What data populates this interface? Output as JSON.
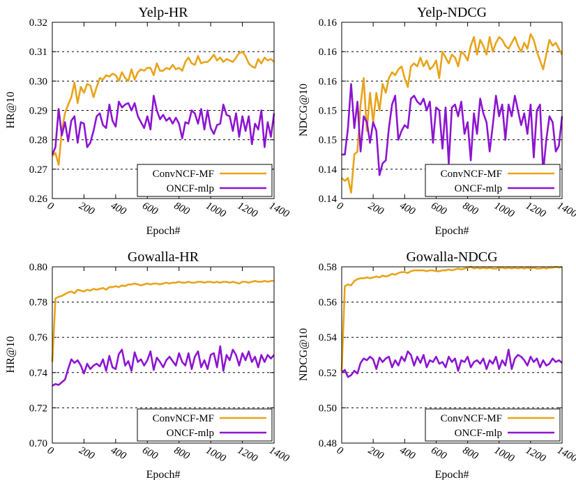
{
  "colors": {
    "convncf_mf": "#e8a319",
    "oncf_mlp": "#8c14d2"
  },
  "chart_data": [
    {
      "id": "yelp-hr",
      "type": "line",
      "title": "Yelp-HR",
      "xlabel": "Epoch#",
      "ylabel": "HR@10",
      "xlim": [
        0,
        1400
      ],
      "ylim": [
        0.26,
        0.32
      ],
      "xticks": [
        "0",
        "200",
        "400",
        "600",
        "800",
        "1000",
        "1200",
        "1400"
      ],
      "yticks": [
        "0.26",
        "0.27",
        "0.28",
        "0.29",
        "0.30",
        "0.31",
        "0.32"
      ],
      "ytick_values": [
        0.26,
        0.27,
        0.28,
        0.29,
        0.3,
        0.31,
        0.32
      ],
      "grid": "horizontal-dashed",
      "legend_position": "bottom-right",
      "x": [
        0,
        20,
        40,
        60,
        80,
        100,
        120,
        140,
        160,
        180,
        200,
        220,
        240,
        260,
        280,
        300,
        320,
        340,
        360,
        380,
        400,
        420,
        440,
        460,
        480,
        500,
        520,
        540,
        560,
        580,
        600,
        620,
        640,
        660,
        680,
        700,
        720,
        740,
        760,
        780,
        800,
        820,
        840,
        860,
        880,
        900,
        920,
        940,
        960,
        980,
        1000,
        1020,
        1040,
        1060,
        1080,
        1100,
        1120,
        1140,
        1160,
        1180,
        1200,
        1220,
        1240,
        1260,
        1280,
        1300,
        1320,
        1340,
        1360,
        1380,
        1400
      ],
      "series": [
        {
          "name": "ConvNCF-MF",
          "color_key": "convncf_mf",
          "values": [
            0.2745,
            0.2755,
            0.2715,
            0.283,
            0.289,
            0.292,
            0.2945,
            0.2995,
            0.2925,
            0.298,
            0.296,
            0.299,
            0.2985,
            0.2945,
            0.298,
            0.301,
            0.3005,
            0.302,
            0.3015,
            0.3025,
            0.302,
            0.3,
            0.303,
            0.301,
            0.3,
            0.304,
            0.3005,
            0.303,
            0.304,
            0.3035,
            0.3045,
            0.3045,
            0.302,
            0.306,
            0.3035,
            0.3035,
            0.3045,
            0.304,
            0.3055,
            0.304,
            0.3045,
            0.3035,
            0.3065,
            0.308,
            0.306,
            0.3055,
            0.3085,
            0.306,
            0.3065,
            0.3065,
            0.3075,
            0.309,
            0.307,
            0.308,
            0.3065,
            0.3075,
            0.307,
            0.3065,
            0.308,
            0.3095,
            0.31,
            0.3085,
            0.306,
            0.305,
            0.3045,
            0.3075,
            0.306,
            0.308,
            0.307,
            0.3075,
            0.3065
          ]
        },
        {
          "name": "ONCF-mlp",
          "color_key": "oncf_mlp",
          "values": [
            0.275,
            0.2775,
            0.2905,
            0.2815,
            0.286,
            0.2795,
            0.2865,
            0.288,
            0.279,
            0.286,
            0.2855,
            0.2775,
            0.279,
            0.283,
            0.288,
            0.289,
            0.285,
            0.284,
            0.292,
            0.2865,
            0.2845,
            0.293,
            0.291,
            0.292,
            0.2925,
            0.29,
            0.2925,
            0.288,
            0.286,
            0.284,
            0.288,
            0.2835,
            0.295,
            0.29,
            0.287,
            0.2885,
            0.2865,
            0.2875,
            0.2855,
            0.2875,
            0.2855,
            0.2805,
            0.286,
            0.2855,
            0.29,
            0.289,
            0.2855,
            0.2905,
            0.2835,
            0.29,
            0.284,
            0.282,
            0.285,
            0.2855,
            0.292,
            0.2885,
            0.288,
            0.283,
            0.289,
            0.281,
            0.288,
            0.283,
            0.288,
            0.2785,
            0.2855,
            0.2835,
            0.29,
            0.2775,
            0.286,
            0.281,
            0.289
          ]
        }
      ]
    },
    {
      "id": "yelp-ndcg",
      "type": "line",
      "title": "Yelp-NDCG",
      "xlabel": "Epoch#",
      "ylabel": "NDCG@10",
      "xlim": [
        0,
        1400
      ],
      "ylim": [
        0.135,
        0.165
      ],
      "xticks": [
        "0",
        "200",
        "400",
        "600",
        "800",
        "1000",
        "1200",
        "1400"
      ],
      "yticks": [
        "0.14",
        "0.14",
        "0.15",
        "0.15",
        "0.16",
        "0.16"
      ],
      "ytick_values": [
        0.135,
        0.14,
        0.145,
        0.15,
        0.155,
        0.16,
        0.165
      ],
      "ytick_labels_all": [
        "0.14",
        "0.14",
        "0.15",
        "0.15",
        "0.16",
        "0.16",
        "0.16"
      ],
      "grid": "horizontal-dashed",
      "legend_position": "bottom-right",
      "x": [
        0,
        20,
        40,
        60,
        80,
        100,
        120,
        140,
        160,
        180,
        200,
        220,
        240,
        260,
        280,
        300,
        320,
        340,
        360,
        380,
        400,
        420,
        440,
        460,
        480,
        500,
        520,
        540,
        560,
        580,
        600,
        620,
        640,
        660,
        680,
        700,
        720,
        740,
        760,
        780,
        800,
        820,
        840,
        860,
        880,
        900,
        920,
        940,
        960,
        980,
        1000,
        1020,
        1040,
        1060,
        1080,
        1100,
        1120,
        1140,
        1160,
        1180,
        1200,
        1220,
        1240,
        1260,
        1280,
        1300,
        1320,
        1340,
        1360,
        1380,
        1400
      ],
      "series": [
        {
          "name": "ConvNCF-MF",
          "color_key": "convncf_mf",
          "values": [
            0.1385,
            0.138,
            0.1385,
            0.136,
            0.1425,
            0.143,
            0.151,
            0.1555,
            0.1465,
            0.153,
            0.148,
            0.153,
            0.15,
            0.1545,
            0.153,
            0.1555,
            0.1565,
            0.156,
            0.157,
            0.1575,
            0.1555,
            0.154,
            0.1575,
            0.158,
            0.1575,
            0.159,
            0.1575,
            0.1585,
            0.157,
            0.1575,
            0.1585,
            0.1555,
            0.16,
            0.159,
            0.158,
            0.1595,
            0.159,
            0.1575,
            0.16,
            0.1595,
            0.1585,
            0.161,
            0.1625,
            0.1595,
            0.162,
            0.161,
            0.1595,
            0.1625,
            0.16,
            0.1615,
            0.1625,
            0.162,
            0.161,
            0.1605,
            0.1615,
            0.1625,
            0.161,
            0.16,
            0.1615,
            0.1605,
            0.163,
            0.162,
            0.16,
            0.1585,
            0.157,
            0.1595,
            0.162,
            0.161,
            0.1615,
            0.1605,
            0.1595
          ]
        },
        {
          "name": "ONCF-mlp",
          "color_key": "oncf_mlp",
          "values": [
            0.1425,
            0.1425,
            0.147,
            0.1545,
            0.147,
            0.1515,
            0.143,
            0.149,
            0.148,
            0.1445,
            0.148,
            0.1465,
            0.139,
            0.141,
            0.1415,
            0.147,
            0.151,
            0.1525,
            0.145,
            0.1465,
            0.1475,
            0.147,
            0.152,
            0.1525,
            0.1515,
            0.151,
            0.152,
            0.15,
            0.1515,
            0.1445,
            0.1505,
            0.15,
            0.1435,
            0.1505,
            0.141,
            0.1505,
            0.151,
            0.149,
            0.1515,
            0.146,
            0.148,
            0.1415,
            0.1495,
            0.146,
            0.152,
            0.1495,
            0.148,
            0.143,
            0.1475,
            0.1525,
            0.149,
            0.151,
            0.145,
            0.151,
            0.149,
            0.1525,
            0.15,
            0.1475,
            0.1495,
            0.146,
            0.151,
            0.142,
            0.15,
            0.151,
            0.1395,
            0.145,
            0.149,
            0.148,
            0.143,
            0.144,
            0.149
          ]
        }
      ]
    },
    {
      "id": "gowalla-hr",
      "type": "line",
      "title": "Gowalla-HR",
      "xlabel": "Epoch#",
      "ylabel": "HR@10",
      "xlim": [
        0,
        1400
      ],
      "ylim": [
        0.7,
        0.8
      ],
      "xticks": [
        "0",
        "200",
        "400",
        "600",
        "800",
        "1000",
        "1200",
        "1400"
      ],
      "yticks": [
        "0.70",
        "0.72",
        "0.74",
        "0.76",
        "0.78",
        "0.80"
      ],
      "ytick_values": [
        0.7,
        0.72,
        0.74,
        0.76,
        0.78,
        0.8
      ],
      "grid": "horizontal-dashed",
      "legend_position": "bottom-right",
      "x": [
        0,
        20,
        40,
        60,
        80,
        100,
        120,
        140,
        160,
        180,
        200,
        220,
        240,
        260,
        280,
        300,
        320,
        340,
        360,
        380,
        400,
        420,
        440,
        460,
        480,
        500,
        520,
        540,
        560,
        580,
        600,
        620,
        640,
        660,
        680,
        700,
        720,
        740,
        760,
        780,
        800,
        820,
        840,
        860,
        880,
        900,
        920,
        940,
        960,
        980,
        1000,
        1020,
        1040,
        1060,
        1080,
        1100,
        1120,
        1140,
        1160,
        1180,
        1200,
        1220,
        1240,
        1260,
        1280,
        1300,
        1320,
        1340,
        1360,
        1380,
        1400
      ],
      "series": [
        {
          "name": "ConvNCF-MF",
          "color_key": "convncf_mf",
          "values": [
            0.746,
            0.782,
            0.783,
            0.7835,
            0.7845,
            0.7855,
            0.786,
            0.785,
            0.787,
            0.7865,
            0.786,
            0.787,
            0.7865,
            0.7875,
            0.787,
            0.7875,
            0.788,
            0.787,
            0.7885,
            0.7885,
            0.789,
            0.7885,
            0.7895,
            0.789,
            0.79,
            0.79,
            0.7905,
            0.79,
            0.7895,
            0.79,
            0.7905,
            0.79,
            0.7905,
            0.7905,
            0.79,
            0.7905,
            0.791,
            0.7905,
            0.791,
            0.791,
            0.7915,
            0.791,
            0.791,
            0.7915,
            0.791,
            0.791,
            0.7915,
            0.7915,
            0.791,
            0.7915,
            0.7915,
            0.791,
            0.7915,
            0.791,
            0.7915,
            0.7915,
            0.791,
            0.7915,
            0.791,
            0.7905,
            0.7915,
            0.7915,
            0.791,
            0.7915,
            0.792,
            0.7915,
            0.7915,
            0.792,
            0.7915,
            0.792,
            0.792
          ]
        },
        {
          "name": "ONCF-mlp",
          "color_key": "oncf_mlp",
          "values": [
            0.7325,
            0.7335,
            0.733,
            0.7345,
            0.736,
            0.742,
            0.7475,
            0.7455,
            0.747,
            0.744,
            0.7395,
            0.745,
            0.742,
            0.744,
            0.745,
            0.7435,
            0.7475,
            0.741,
            0.7495,
            0.743,
            0.742,
            0.7505,
            0.753,
            0.744,
            0.7465,
            0.741,
            0.7515,
            0.746,
            0.7475,
            0.744,
            0.747,
            0.752,
            0.7415,
            0.7485,
            0.746,
            0.743,
            0.747,
            0.749,
            0.7465,
            0.744,
            0.751,
            0.746,
            0.744,
            0.751,
            0.742,
            0.749,
            0.752,
            0.743,
            0.747,
            0.742,
            0.75,
            0.751,
            0.743,
            0.755,
            0.741,
            0.75,
            0.747,
            0.753,
            0.75,
            0.744,
            0.751,
            0.747,
            0.752,
            0.746,
            0.749,
            0.743,
            0.75,
            0.746,
            0.75,
            0.748,
            0.75
          ]
        }
      ]
    },
    {
      "id": "gowalla-ndcg",
      "type": "line",
      "title": "Gowalla-NDCG",
      "xlabel": "Epoch#",
      "ylabel": "NDCG@10",
      "xlim": [
        0,
        1400
      ],
      "ylim": [
        0.48,
        0.58
      ],
      "xticks": [
        "0",
        "200",
        "400",
        "600",
        "800",
        "1000",
        "1200",
        "1400"
      ],
      "yticks": [
        "0.48",
        "0.50",
        "0.52",
        "0.54",
        "0.56",
        "0.58"
      ],
      "ytick_values": [
        0.48,
        0.5,
        0.52,
        0.54,
        0.56,
        0.58
      ],
      "grid": "horizontal-dashed",
      "legend_position": "bottom-right",
      "x": [
        0,
        20,
        40,
        60,
        80,
        100,
        120,
        140,
        160,
        180,
        200,
        220,
        240,
        260,
        280,
        300,
        320,
        340,
        360,
        380,
        400,
        420,
        440,
        460,
        480,
        500,
        520,
        540,
        560,
        580,
        600,
        620,
        640,
        660,
        680,
        700,
        720,
        740,
        760,
        780,
        800,
        820,
        840,
        860,
        880,
        900,
        920,
        940,
        960,
        980,
        1000,
        1020,
        1040,
        1060,
        1080,
        1100,
        1120,
        1140,
        1160,
        1180,
        1200,
        1220,
        1240,
        1260,
        1280,
        1300,
        1320,
        1340,
        1360,
        1380,
        1400
      ],
      "series": [
        {
          "name": "ConvNCF-MF",
          "color_key": "convncf_mf",
          "values": [
            0.521,
            0.569,
            0.57,
            0.5695,
            0.572,
            0.573,
            0.5735,
            0.5735,
            0.574,
            0.5735,
            0.574,
            0.5745,
            0.574,
            0.575,
            0.5745,
            0.575,
            0.576,
            0.5755,
            0.5765,
            0.577,
            0.577,
            0.5765,
            0.5775,
            0.578,
            0.578,
            0.578,
            0.578,
            0.5775,
            0.578,
            0.578,
            0.5775,
            0.5775,
            0.578,
            0.578,
            0.5785,
            0.578,
            0.5785,
            0.579,
            0.5785,
            0.579,
            0.5795,
            0.58,
            0.579,
            0.5795,
            0.579,
            0.5795,
            0.579,
            0.5795,
            0.579,
            0.579,
            0.5795,
            0.5795,
            0.579,
            0.5795,
            0.579,
            0.5795,
            0.579,
            0.5795,
            0.579,
            0.5795,
            0.579,
            0.5795,
            0.579,
            0.579,
            0.5795,
            0.579,
            0.5795,
            0.5795,
            0.58,
            0.5795,
            0.58
          ]
        },
        {
          "name": "ONCF-mlp",
          "color_key": "oncf_mlp",
          "values": [
            0.52,
            0.5215,
            0.5175,
            0.5185,
            0.521,
            0.5195,
            0.5255,
            0.528,
            0.527,
            0.529,
            0.5275,
            0.522,
            0.5285,
            0.526,
            0.528,
            0.529,
            0.523,
            0.527,
            0.524,
            0.529,
            0.5265,
            0.532,
            0.53,
            0.524,
            0.529,
            0.5255,
            0.53,
            0.523,
            0.527,
            0.526,
            0.529,
            0.525,
            0.526,
            0.523,
            0.529,
            0.526,
            0.528,
            0.521,
            0.527,
            0.526,
            0.529,
            0.523,
            0.526,
            0.527,
            0.525,
            0.528,
            0.522,
            0.527,
            0.525,
            0.529,
            0.522,
            0.527,
            0.524,
            0.533,
            0.522,
            0.528,
            0.53,
            0.529,
            0.527,
            0.524,
            0.529,
            0.526,
            0.528,
            0.523,
            0.527,
            0.524,
            0.525,
            0.528,
            0.526,
            0.527,
            0.5255
          ]
        }
      ]
    }
  ]
}
